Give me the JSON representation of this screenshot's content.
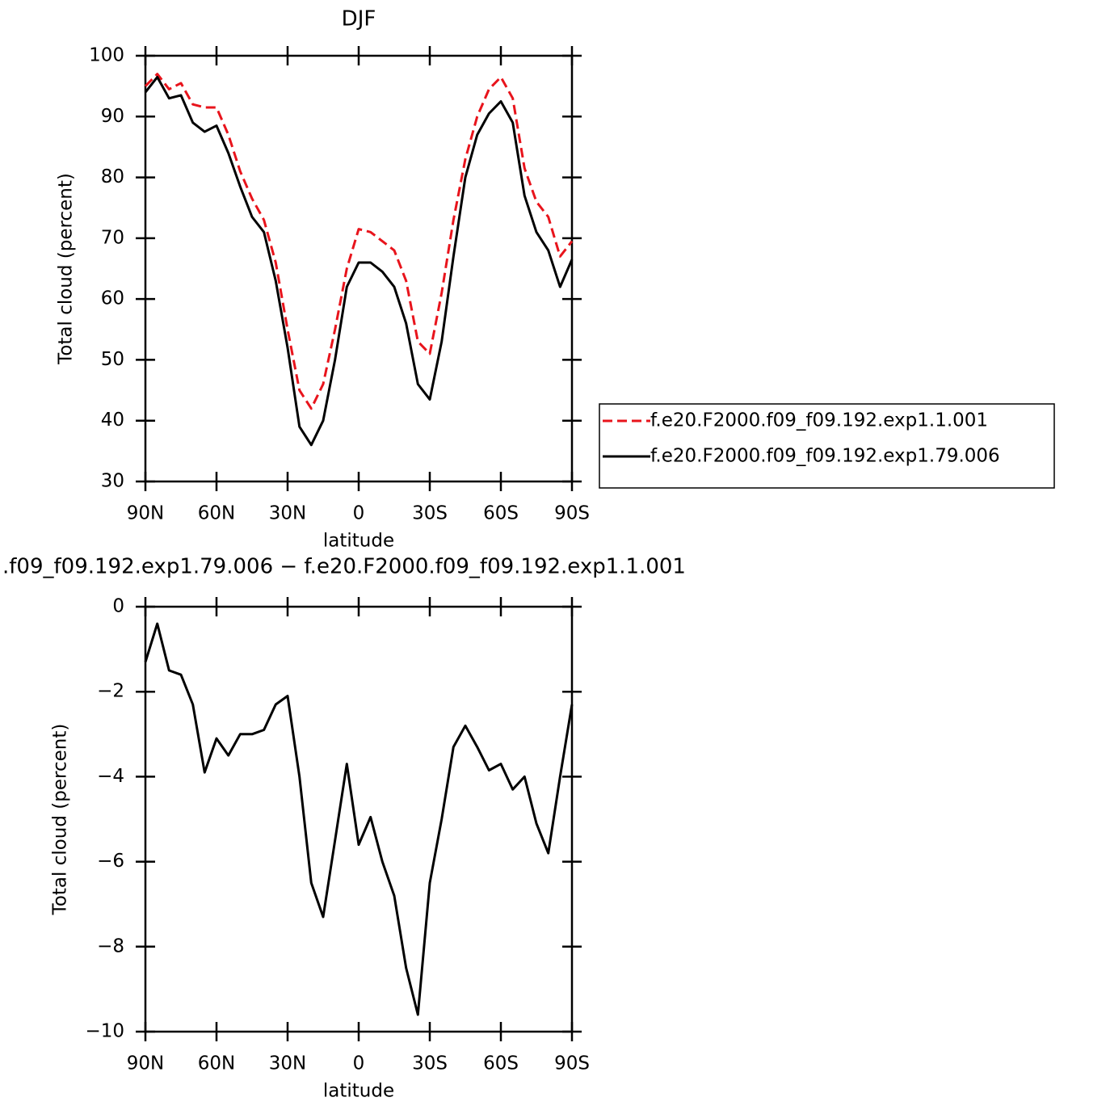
{
  "chart_data": [
    {
      "type": "line",
      "title": "DJF",
      "xlabel": "latitude",
      "ylabel": "Total cloud (percent)",
      "x": [
        90,
        85,
        80,
        75,
        70,
        65,
        60,
        55,
        50,
        45,
        40,
        35,
        30,
        25,
        20,
        15,
        10,
        5,
        0,
        -5,
        -10,
        -15,
        -20,
        -25,
        -30,
        -35,
        -40,
        -45,
        -50,
        -55,
        -60,
        -65,
        -70,
        -75,
        -80,
        -85,
        -90
      ],
      "xlim": [
        90,
        -90
      ],
      "xticks": [
        {
          "value": 90,
          "label": "90N"
        },
        {
          "value": 60,
          "label": "60N"
        },
        {
          "value": 30,
          "label": "30N"
        },
        0,
        {
          "value": -30,
          "label": "30S"
        },
        {
          "value": -60,
          "label": "60S"
        },
        {
          "value": -90,
          "label": "90S"
        }
      ],
      "ylim": [
        30,
        100
      ],
      "yticks": [
        30,
        40,
        50,
        60,
        70,
        80,
        90,
        100
      ],
      "legend": "right",
      "series": [
        {
          "name": "f.e20.F2000.f09_f09.192.exp1.1.001",
          "color": "#e8141c",
          "line_style": "dashed",
          "values": [
            95,
            97,
            94.5,
            95.5,
            92,
            91.5,
            91.5,
            87,
            81,
            76.5,
            73,
            66,
            55,
            45,
            42,
            46,
            55,
            65,
            71.5,
            71,
            69.5,
            68,
            63,
            53,
            51,
            61,
            73,
            83,
            90,
            94.5,
            96.5,
            93,
            81.5,
            76,
            73.5,
            67,
            69.5
          ]
        },
        {
          "name": "f.e20.F2000.f09_f09.192.exp1.79.006",
          "color": "#000000",
          "line_style": "solid",
          "values": [
            94,
            96.5,
            93,
            93.5,
            89,
            87.5,
            88.5,
            84,
            78.5,
            73.5,
            71,
            63,
            52,
            39,
            36,
            40,
            50,
            62,
            66,
            66,
            64.5,
            62,
            56,
            46,
            43.5,
            53,
            67,
            80,
            87,
            90.5,
            92.5,
            89,
            77,
            71,
            68,
            62,
            66.5
          ]
        }
      ]
    },
    {
      "type": "line",
      "title": ".f09_f09.192.exp1.79.006 − f.e20.F2000.f09_f09.192.exp1.1.001",
      "xlabel": "latitude",
      "ylabel": "Total cloud (percent)",
      "x": [
        90,
        85,
        80,
        75,
        70,
        65,
        60,
        55,
        50,
        45,
        40,
        35,
        30,
        25,
        20,
        15,
        10,
        5,
        0,
        -5,
        -10,
        -15,
        -20,
        -25,
        -30,
        -35,
        -40,
        -45,
        -50,
        -55,
        -60,
        -65,
        -70,
        -75,
        -80,
        -85,
        -90
      ],
      "xlim": [
        90,
        -90
      ],
      "xticks": [
        {
          "value": 90,
          "label": "90N"
        },
        {
          "value": 60,
          "label": "60N"
        },
        {
          "value": 30,
          "label": "30N"
        },
        0,
        {
          "value": -30,
          "label": "30S"
        },
        {
          "value": -60,
          "label": "60S"
        },
        {
          "value": -90,
          "label": "90S"
        }
      ],
      "ylim": [
        -10,
        0
      ],
      "yticks": [
        0,
        {
          "value": -2,
          "label": "−2"
        },
        {
          "value": -4,
          "label": "−4"
        },
        {
          "value": -6,
          "label": "−6"
        },
        {
          "value": -8,
          "label": "−8"
        },
        {
          "value": -10,
          "label": "−10"
        }
      ],
      "color": "#000000",
      "values": [
        -1.3,
        -0.4,
        -1.5,
        -1.6,
        -2.3,
        -3.9,
        -3.1,
        -3.5,
        -3.0,
        -3.0,
        -2.9,
        -2.3,
        -2.1,
        -4.0,
        -6.5,
        -7.3,
        -5.5,
        -3.7,
        -5.6,
        -4.95,
        -6.0,
        -6.8,
        -8.5,
        -9.6,
        -6.5,
        -5.0,
        -3.3,
        -2.8,
        -3.3,
        -3.85,
        -3.7,
        -4.3,
        -4.0,
        -5.1,
        -5.8,
        -4.0,
        -2.3
      ]
    }
  ]
}
